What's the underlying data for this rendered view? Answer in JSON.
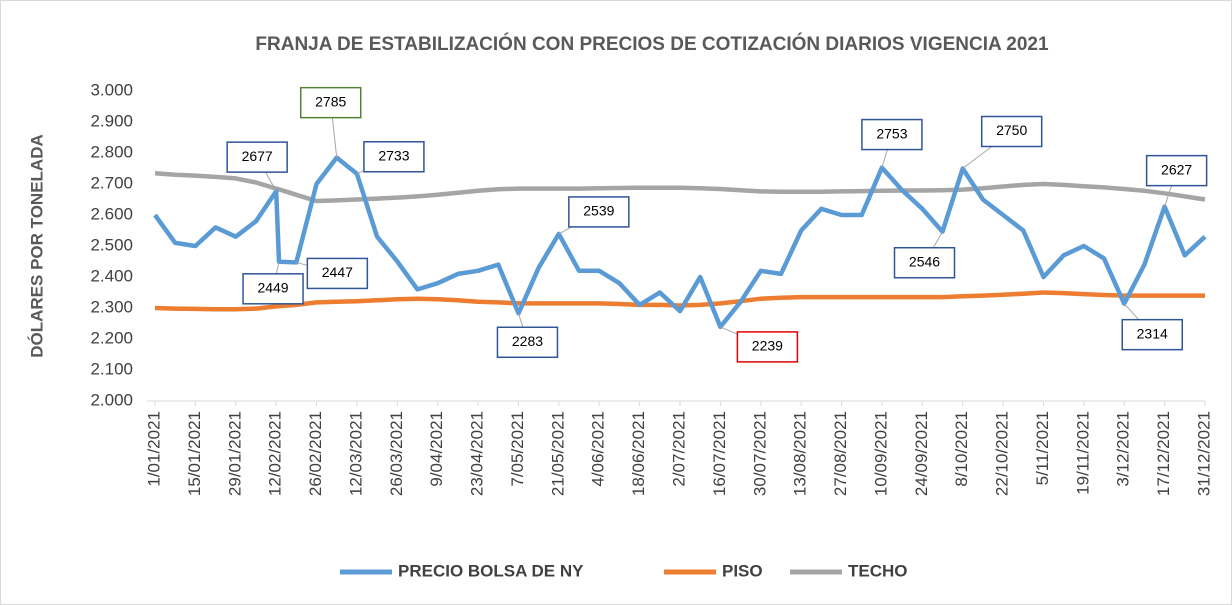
{
  "chart_data": {
    "type": "line",
    "title": "FRANJA DE ESTABILIZACIÓN CON PRECIOS DE COTIZACIÓN DIARIOS VIGENCIA 2021",
    "y_label": "DÓLARES POR TONELADA",
    "x": [
      "1/01/2021",
      "8/01/2021",
      "15/01/2021",
      "22/01/2021",
      "29/01/2021",
      "5/02/2021",
      "12/02/2021",
      "13/02/2021",
      "19/02/2021",
      "26/02/2021",
      "5/03/2021",
      "12/03/2021",
      "19/03/2021",
      "26/03/2021",
      "2/04/2021",
      "9/04/2021",
      "16/04/2021",
      "23/04/2021",
      "30/04/2021",
      "7/05/2021",
      "14/05/2021",
      "21/05/2021",
      "28/05/2021",
      "4/06/2021",
      "11/06/2021",
      "18/06/2021",
      "25/06/2021",
      "2/07/2021",
      "9/07/2021",
      "16/07/2021",
      "23/07/2021",
      "30/07/2021",
      "6/08/2021",
      "13/08/2021",
      "20/08/2021",
      "27/08/2021",
      "3/09/2021",
      "10/09/2021",
      "17/09/2021",
      "24/09/2021",
      "1/10/2021",
      "8/10/2021",
      "15/10/2021",
      "22/10/2021",
      "29/10/2021",
      "5/11/2021",
      "12/11/2021",
      "19/11/2021",
      "26/11/2021",
      "3/12/2021",
      "10/12/2021",
      "17/12/2021",
      "24/12/2021",
      "31/12/2021"
    ],
    "series": [
      {
        "name": "PRECIO BOLSA DE NY",
        "color": "#5b9bd5",
        "values": [
          2600,
          2510,
          2500,
          2560,
          2530,
          2580,
          2677,
          2449,
          2447,
          2700,
          2785,
          2733,
          2530,
          2450,
          2360,
          2380,
          2410,
          2420,
          2440,
          2283,
          2430,
          2539,
          2420,
          2420,
          2380,
          2310,
          2350,
          2290,
          2400,
          2239,
          2320,
          2420,
          2410,
          2550,
          2620,
          2600,
          2600,
          2753,
          2680,
          2620,
          2546,
          2750,
          2650,
          2600,
          2550,
          2400,
          2470,
          2500,
          2460,
          2314,
          2440,
          2627,
          2470,
          2530
        ]
      },
      {
        "name": "PISO",
        "color": "#ed7d31",
        "values": [
          2300,
          2298,
          2297,
          2296,
          2296,
          2298,
          2305,
          2306,
          2310,
          2318,
          2320,
          2322,
          2325,
          2328,
          2330,
          2328,
          2325,
          2320,
          2318,
          2315,
          2315,
          2315,
          2315,
          2315,
          2313,
          2310,
          2310,
          2308,
          2310,
          2315,
          2322,
          2330,
          2333,
          2335,
          2335,
          2335,
          2335,
          2335,
          2335,
          2335,
          2335,
          2338,
          2340,
          2343,
          2346,
          2350,
          2348,
          2345,
          2342,
          2340,
          2340,
          2340,
          2340,
          2340
        ]
      },
      {
        "name": "TECHO",
        "color": "#a5a5a5",
        "values": [
          2735,
          2730,
          2727,
          2723,
          2718,
          2705,
          2685,
          2683,
          2665,
          2645,
          2647,
          2650,
          2653,
          2656,
          2660,
          2665,
          2672,
          2678,
          2683,
          2685,
          2685,
          2685,
          2685,
          2686,
          2687,
          2688,
          2688,
          2688,
          2686,
          2684,
          2680,
          2676,
          2675,
          2675,
          2675,
          2676,
          2677,
          2678,
          2679,
          2679,
          2680,
          2682,
          2686,
          2692,
          2697,
          2700,
          2697,
          2693,
          2689,
          2684,
          2678,
          2670,
          2660,
          2650
        ]
      }
    ],
    "annotations": [
      {
        "x": "12/02/2021",
        "value": 2677,
        "color": "#2f5597"
      },
      {
        "x": "13/02/2021",
        "value": 2449,
        "color": "#2f5597"
      },
      {
        "x": "19/02/2021",
        "value": 2447,
        "color": "#2f5597"
      },
      {
        "x": "5/03/2021",
        "value": 2785,
        "color": "#548235"
      },
      {
        "x": "12/03/2021",
        "value": 2733,
        "color": "#2f5597"
      },
      {
        "x": "7/05/2021",
        "value": 2283,
        "color": "#2f5597"
      },
      {
        "x": "21/05/2021",
        "value": 2539,
        "color": "#2f5597"
      },
      {
        "x": "16/07/2021",
        "value": 2239,
        "color": "#e00000"
      },
      {
        "x": "10/09/2021",
        "value": 2753,
        "color": "#2f5597"
      },
      {
        "x": "1/10/2021",
        "value": 2546,
        "color": "#2f5597"
      },
      {
        "x": "8/10/2021",
        "value": 2750,
        "color": "#2f5597"
      },
      {
        "x": "3/12/2021",
        "value": 2314,
        "color": "#2f5597"
      },
      {
        "x": "17/12/2021",
        "value": 2627,
        "color": "#2f5597"
      }
    ],
    "xticks": [
      "1/01/2021",
      "15/01/2021",
      "29/01/2021",
      "12/02/2021",
      "26/02/2021",
      "12/03/2021",
      "26/03/2021",
      "9/04/2021",
      "23/04/2021",
      "7/05/2021",
      "21/05/2021",
      "4/06/2021",
      "18/06/2021",
      "2/07/2021",
      "16/07/2021",
      "30/07/2021",
      "13/08/2021",
      "27/08/2021",
      "10/09/2021",
      "24/09/2021",
      "8/10/2021",
      "22/10/2021",
      "5/11/2021",
      "19/11/2021",
      "3/12/2021",
      "17/12/2021",
      "31/12/2021"
    ],
    "ylim": [
      2000,
      3000
    ],
    "yticks": [
      {
        "value": 2000,
        "label": "2.000"
      },
      {
        "value": 2100,
        "label": "2.100"
      },
      {
        "value": 2200,
        "label": "2.200"
      },
      {
        "value": 2300,
        "label": "2.300"
      },
      {
        "value": 2400,
        "label": "2.400"
      },
      {
        "value": 2500,
        "label": "2.500"
      },
      {
        "value": 2600,
        "label": "2.600"
      },
      {
        "value": 2700,
        "label": "2.700"
      },
      {
        "value": 2800,
        "label": "2.800"
      },
      {
        "value": 2900,
        "label": "2.900"
      },
      {
        "value": 3000,
        "label": "3.000"
      }
    ],
    "legend": "bottom"
  }
}
